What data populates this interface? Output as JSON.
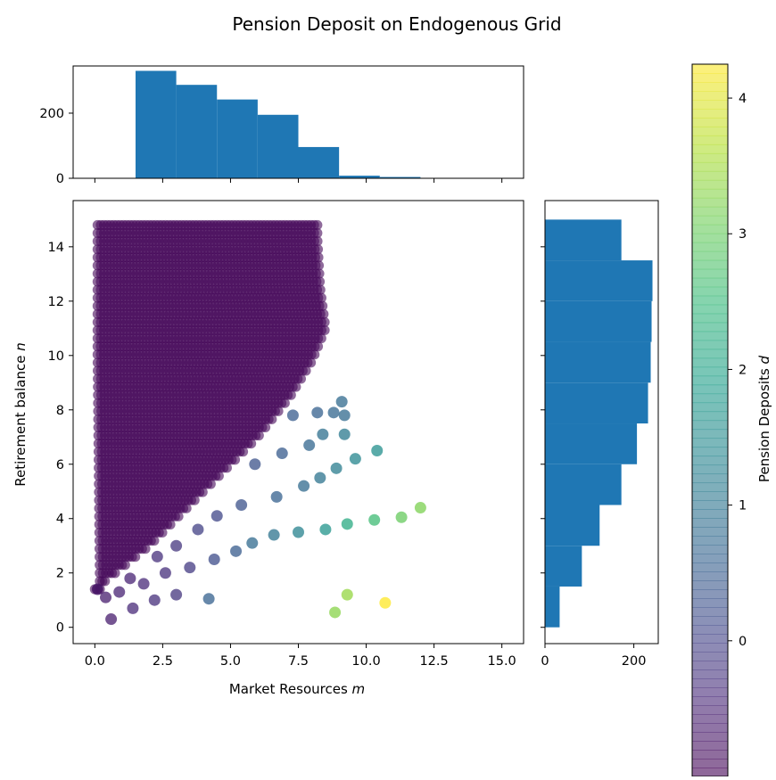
{
  "chart_data": {
    "type": "scatter",
    "title": "Pension Deposit on Endogenous Grid",
    "xlabel": "Market Resources m",
    "ylabel": "Retirement balance n",
    "colorbar_label": "Pension Deposits d",
    "xlim": [
      -0.8,
      15.8
    ],
    "ylim": [
      -0.6,
      15.7
    ],
    "x_ticks": [
      "0.0",
      "2.5",
      "5.0",
      "7.5",
      "10.0",
      "12.5",
      "15.0"
    ],
    "y_ticks": [
      "0",
      "2",
      "4",
      "6",
      "8",
      "10",
      "12",
      "14"
    ],
    "colormap": "viridis",
    "colorbar_range": [
      -1.0,
      4.25
    ],
    "colorbar_ticks": [
      "0",
      "1",
      "2",
      "3",
      "4"
    ],
    "point_alpha": 0.6,
    "dense_grid_region": {
      "description": "dense triangular endogenous grid of points with d near minimum",
      "top_edge": {
        "m_from": 0.1,
        "n_from": 14.8,
        "m_to": 8.2,
        "n_to": 14.3
      },
      "diagonal_edge_points": [
        [
          0.0,
          1.4
        ],
        [
          2.0,
          3.0
        ],
        [
          4.0,
          5.0
        ],
        [
          6.0,
          7.0
        ],
        [
          7.2,
          8.5
        ],
        [
          8.0,
          9.8
        ],
        [
          8.5,
          11.0
        ],
        [
          8.3,
          12.5
        ],
        [
          8.2,
          14.3
        ]
      ],
      "rows": 46
    },
    "scatter_points": [
      {
        "m": 0.6,
        "n": 0.3,
        "d": -0.6
      },
      {
        "m": 1.4,
        "n": 0.7,
        "d": -0.4
      },
      {
        "m": 2.2,
        "n": 1.0,
        "d": -0.3
      },
      {
        "m": 3.0,
        "n": 1.2,
        "d": -0.2
      },
      {
        "m": 4.2,
        "n": 1.05,
        "d": 0.6
      },
      {
        "m": 0.1,
        "n": 1.4,
        "d": -0.7
      },
      {
        "m": 0.4,
        "n": 1.1,
        "d": -0.6
      },
      {
        "m": 0.9,
        "n": 1.3,
        "d": -0.5
      },
      {
        "m": 1.3,
        "n": 1.8,
        "d": -0.5
      },
      {
        "m": 1.8,
        "n": 1.6,
        "d": -0.4
      },
      {
        "m": 2.6,
        "n": 2.0,
        "d": -0.3
      },
      {
        "m": 3.5,
        "n": 2.2,
        "d": -0.1
      },
      {
        "m": 4.4,
        "n": 2.5,
        "d": 0.2
      },
      {
        "m": 5.2,
        "n": 2.8,
        "d": 0.5
      },
      {
        "m": 5.8,
        "n": 3.1,
        "d": 0.8
      },
      {
        "m": 6.6,
        "n": 3.4,
        "d": 1.0
      },
      {
        "m": 7.5,
        "n": 3.5,
        "d": 1.3
      },
      {
        "m": 8.5,
        "n": 3.6,
        "d": 1.7
      },
      {
        "m": 9.3,
        "n": 3.8,
        "d": 2.2
      },
      {
        "m": 10.3,
        "n": 3.95,
        "d": 2.6
      },
      {
        "m": 11.3,
        "n": 4.05,
        "d": 3.0
      },
      {
        "m": 12.0,
        "n": 4.4,
        "d": 3.2
      },
      {
        "m": 2.3,
        "n": 2.6,
        "d": -0.3
      },
      {
        "m": 3.0,
        "n": 3.0,
        "d": -0.2
      },
      {
        "m": 3.8,
        "n": 3.6,
        "d": 0.0
      },
      {
        "m": 4.5,
        "n": 4.1,
        "d": 0.1
      },
      {
        "m": 5.4,
        "n": 4.5,
        "d": 0.3
      },
      {
        "m": 6.7,
        "n": 4.8,
        "d": 0.6
      },
      {
        "m": 7.7,
        "n": 5.2,
        "d": 0.8
      },
      {
        "m": 8.3,
        "n": 5.5,
        "d": 1.0
      },
      {
        "m": 8.9,
        "n": 5.85,
        "d": 1.2
      },
      {
        "m": 9.6,
        "n": 6.2,
        "d": 1.4
      },
      {
        "m": 10.4,
        "n": 6.5,
        "d": 1.6
      },
      {
        "m": 5.9,
        "n": 6.0,
        "d": 0.3
      },
      {
        "m": 6.9,
        "n": 6.4,
        "d": 0.5
      },
      {
        "m": 7.9,
        "n": 6.7,
        "d": 0.7
      },
      {
        "m": 8.4,
        "n": 7.1,
        "d": 0.9
      },
      {
        "m": 9.2,
        "n": 7.1,
        "d": 1.1
      },
      {
        "m": 7.3,
        "n": 7.8,
        "d": 0.5
      },
      {
        "m": 8.2,
        "n": 7.9,
        "d": 0.6
      },
      {
        "m": 8.8,
        "n": 7.9,
        "d": 0.7
      },
      {
        "m": 9.1,
        "n": 8.3,
        "d": 0.8
      },
      {
        "m": 9.2,
        "n": 7.8,
        "d": 0.8
      },
      {
        "m": 8.85,
        "n": 0.55,
        "d": 3.3
      },
      {
        "m": 9.3,
        "n": 1.2,
        "d": 3.4
      },
      {
        "m": 10.7,
        "n": 0.9,
        "d": 4.25
      }
    ],
    "top_histogram": {
      "bins": [
        [
          1.5,
          3.0
        ],
        [
          3.0,
          4.5
        ],
        [
          4.5,
          6.0
        ],
        [
          6.0,
          7.5
        ],
        [
          7.5,
          9.0
        ],
        [
          9.0,
          10.5
        ],
        [
          10.5,
          12.0
        ]
      ],
      "counts": [
        330,
        287,
        242,
        195,
        96,
        8,
        4
      ],
      "ylim": [
        0,
        345
      ],
      "y_ticks": [
        "0",
        "200"
      ]
    },
    "right_histogram": {
      "bins": [
        [
          0.0,
          1.5
        ],
        [
          1.5,
          3.0
        ],
        [
          3.0,
          4.5
        ],
        [
          4.5,
          6.0
        ],
        [
          6.0,
          7.5
        ],
        [
          7.5,
          9.0
        ],
        [
          9.0,
          10.5
        ],
        [
          10.5,
          12.0
        ],
        [
          12.0,
          13.5
        ],
        [
          13.5,
          15.0
        ]
      ],
      "counts": [
        33,
        83,
        123,
        172,
        207,
        232,
        238,
        240,
        242,
        172
      ],
      "xlim": [
        0,
        255
      ],
      "x_ticks": [
        "0",
        "200"
      ]
    },
    "colors": {
      "bar": "#1f77b4"
    }
  }
}
